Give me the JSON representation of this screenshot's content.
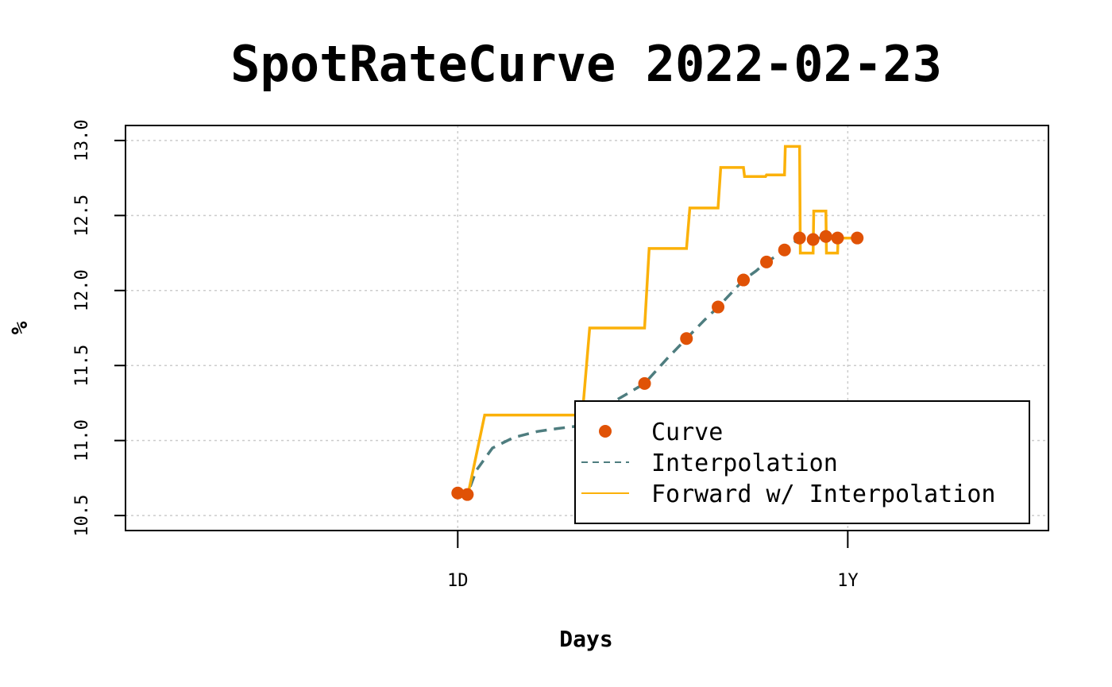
{
  "colors": {
    "curve": "#E05206",
    "interpolation": "#4E7D7F",
    "forward": "#FBB109",
    "grid": "#CCCCCC",
    "axis": "#000000"
  },
  "chart_data": {
    "type": "line",
    "title": "SpotRateCurve 2022-02-23",
    "xlabel": "Days",
    "ylabel": "%",
    "xlim": [
      -11,
      1231
    ],
    "ylim": [
      10.4,
      13.1
    ],
    "x_ticks": [
      {
        "value": 1,
        "label": "1D"
      },
      {
        "value": 252,
        "label": "1Y"
      }
    ],
    "y_ticks": [
      {
        "value": 10.5,
        "label": "10.5"
      },
      {
        "value": 11.0,
        "label": "11.0"
      },
      {
        "value": 11.5,
        "label": "11.5"
      },
      {
        "value": 12.0,
        "label": "12.0"
      },
      {
        "value": 12.5,
        "label": "12.5"
      },
      {
        "value": 13.0,
        "label": "13.0"
      }
    ],
    "x_scale": "log",
    "grid": true,
    "legend_position": "bottom-right",
    "series": [
      {
        "name": "Curve",
        "style": "points",
        "x": [
          1,
          2,
          22,
          43,
          64,
          85,
          106,
          129,
          150,
          170,
          190,
          211,
          232,
          272
        ],
        "y": [
          10.65,
          10.64,
          11.1,
          11.38,
          11.68,
          11.89,
          12.07,
          12.19,
          12.27,
          12.35,
          12.34,
          12.36,
          12.35,
          12.35
        ]
      },
      {
        "name": "Interpolation",
        "style": "dashed",
        "x": [
          1,
          2,
          3,
          5,
          8,
          12,
          16,
          22,
          28,
          35,
          43,
          53,
          64,
          75,
          85,
          95,
          106,
          118,
          129,
          140,
          150,
          160,
          170,
          180,
          190,
          200,
          211,
          222,
          232,
          252,
          272
        ],
        "y": [
          10.65,
          10.64,
          10.8,
          10.95,
          11.02,
          11.06,
          11.08,
          11.1,
          11.22,
          11.3,
          11.38,
          11.54,
          11.68,
          11.8,
          11.89,
          11.98,
          12.07,
          12.13,
          12.19,
          12.23,
          12.27,
          12.31,
          12.35,
          12.345,
          12.34,
          12.35,
          12.36,
          12.355,
          12.35,
          12.35,
          12.35
        ]
      },
      {
        "name": "Forward w/ Interpolation",
        "style": "step",
        "x": [
          1,
          2,
          4,
          22,
          24,
          43,
          45,
          64,
          66,
          85,
          87,
          106,
          107,
          128,
          129,
          150,
          151,
          170,
          171,
          190,
          191,
          211,
          212,
          232,
          233,
          272
        ],
        "y": [
          10.65,
          10.62,
          11.17,
          11.17,
          11.75,
          11.75,
          12.28,
          12.28,
          12.55,
          12.55,
          12.82,
          12.82,
          12.76,
          12.76,
          12.77,
          12.77,
          12.96,
          12.96,
          12.25,
          12.25,
          12.53,
          12.53,
          12.25,
          12.25,
          12.35,
          12.35
        ]
      }
    ]
  }
}
